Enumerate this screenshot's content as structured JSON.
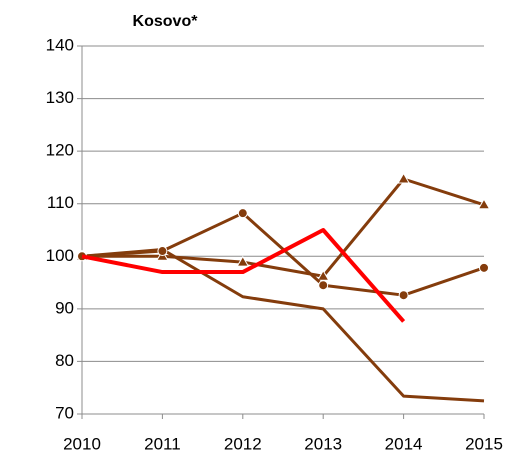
{
  "chart_data": {
    "type": "line",
    "title": "Kosovo*",
    "x": [
      2010,
      2011,
      2012,
      2013,
      2014,
      2015
    ],
    "xlim": [
      2010,
      2015
    ],
    "xticks": [
      2010,
      2011,
      2012,
      2013,
      2014,
      2015
    ],
    "ylim": [
      70,
      140
    ],
    "yticks": [
      70,
      80,
      90,
      100,
      110,
      120,
      130,
      140
    ],
    "grid": true,
    "series": [
      {
        "color": "#843c0c",
        "marker": "none",
        "values": [
          100,
          101.3,
          92.3,
          90,
          73.4,
          72.5
        ]
      },
      {
        "color": "#843c0c",
        "marker": "triangle",
        "values": [
          100,
          100,
          98.9,
          96.2,
          114.7,
          109.8
        ]
      },
      {
        "color": "#843c0c",
        "marker": "circle",
        "values": [
          100,
          101,
          108.2,
          94.5,
          92.6,
          97.8
        ]
      },
      {
        "color": "#ff0000",
        "marker": "none",
        "values": [
          100,
          97,
          97,
          105,
          87.6,
          null
        ]
      }
    ]
  }
}
